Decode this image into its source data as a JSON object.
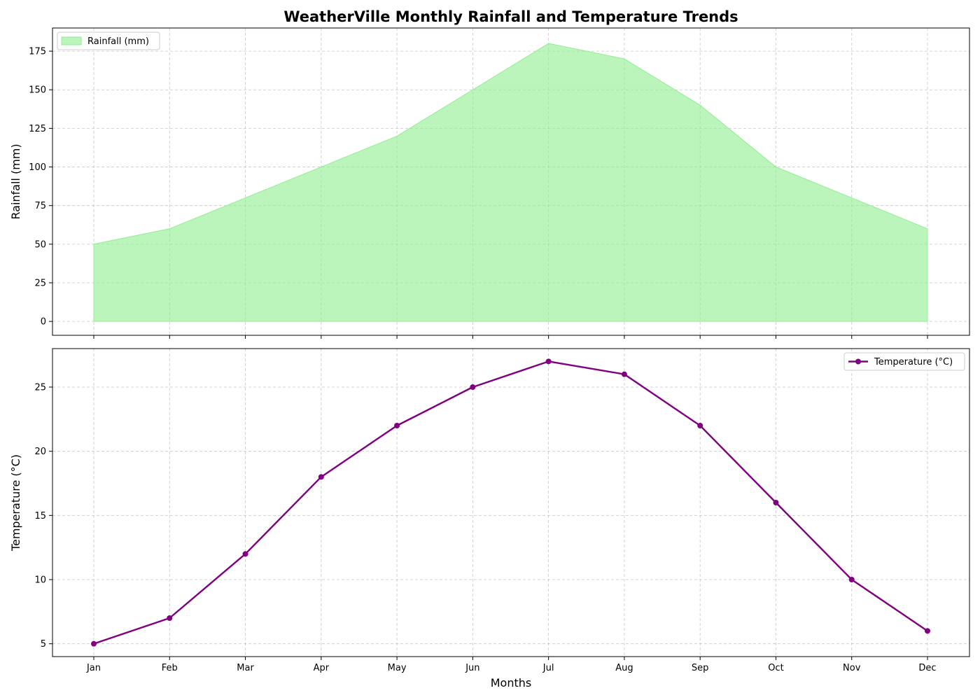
{
  "figure": {
    "title": "WeatherVille Monthly Rainfall and Temperature Trends"
  },
  "chart_data": [
    {
      "type": "area",
      "categories": [
        "Jan",
        "Feb",
        "Mar",
        "Apr",
        "May",
        "Jun",
        "Jul",
        "Aug",
        "Sep",
        "Oct",
        "Nov",
        "Dec"
      ],
      "series": [
        {
          "name": "Rainfall (mm)",
          "values": [
            50,
            60,
            80,
            100,
            120,
            150,
            180,
            170,
            140,
            100,
            80,
            60
          ],
          "color": "#90ee90"
        }
      ],
      "ylabel": "Rainfall (mm)",
      "xlabel": "",
      "ylim": [
        -9,
        190
      ],
      "yticks": [
        0,
        25,
        50,
        75,
        100,
        125,
        150,
        175
      ],
      "show_xtick_labels": false,
      "grid": true,
      "legend": "upper-left"
    },
    {
      "type": "line",
      "categories": [
        "Jan",
        "Feb",
        "Mar",
        "Apr",
        "May",
        "Jun",
        "Jul",
        "Aug",
        "Sep",
        "Oct",
        "Nov",
        "Dec"
      ],
      "series": [
        {
          "name": "Temperature (°C)",
          "values": [
            5,
            7,
            12,
            18,
            22,
            25,
            27,
            26,
            22,
            16,
            10,
            6
          ],
          "color": "#800080",
          "marker": "circle"
        }
      ],
      "ylabel": "Temperature (°C)",
      "xlabel": "Months",
      "ylim": [
        4.0,
        28.0
      ],
      "yticks": [
        5,
        10,
        15,
        20,
        25
      ],
      "show_xtick_labels": true,
      "grid": true,
      "legend": "upper-right"
    }
  ]
}
